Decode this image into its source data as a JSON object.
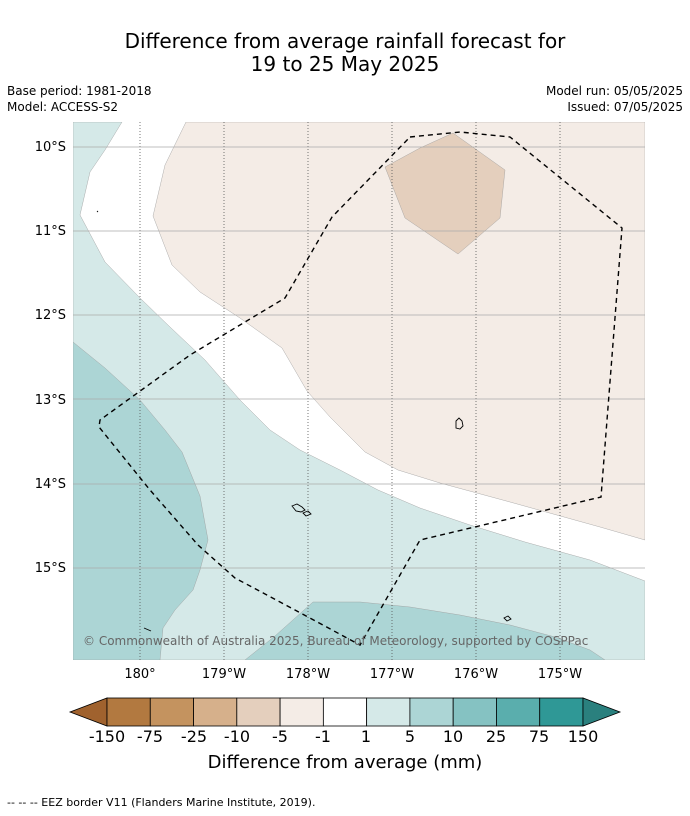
{
  "title_line1": "Difference from average rainfall forecast for",
  "title_line2": "19 to 25 May 2025",
  "base_period": "Base period: 1981-2018",
  "model": "Model: ACCESS-S2",
  "model_run": "Model run: 05/05/2025",
  "issued": "Issued: 07/05/2025",
  "lat_labels": [
    "10°S",
    "11°S",
    "12°S",
    "13°S",
    "14°S",
    "15°S"
  ],
  "lon_labels": [
    "180°",
    "179°W",
    "178°W",
    "177°W",
    "176°W",
    "175°W"
  ],
  "copyright": "© Commonwealth of Australia 2025, Bureau of Meteorology, supported by COSPPac",
  "colorbar": {
    "title": "Difference from average (mm)",
    "ticks": [
      "-150",
      "-75",
      "-25",
      "-10",
      "-5",
      "-1",
      "1",
      "5",
      "10",
      "25",
      "75",
      "150"
    ],
    "colors": [
      "#a0622e",
      "#b27940",
      "#c4935f",
      "#d6b08b",
      "#e4cfbd",
      "#f4ece6",
      "#ffffff",
      "#d5e9e8",
      "#acd5d5",
      "#85c2c2",
      "#5aaead",
      "#2f9896",
      "#2a807e"
    ]
  },
  "map_colors": {
    "dry_light": "#f4ece6",
    "dry_medium": "#e4cfbd",
    "wet_light": "#d5e9e8",
    "wet_medium": "#acd5d5"
  },
  "footnote": "--  --  -- EEZ border V11 (Flanders Marine Institute, 2019)."
}
